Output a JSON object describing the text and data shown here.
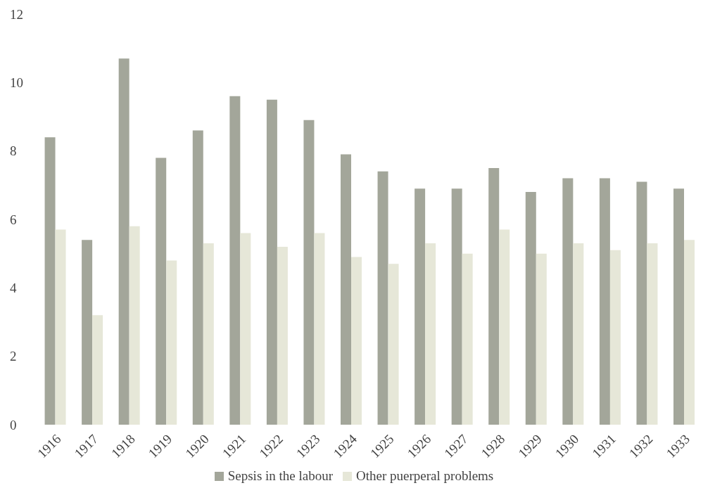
{
  "chart_data": {
    "type": "bar",
    "categories": [
      "1916",
      "1917",
      "1918",
      "1919",
      "1920",
      "1921",
      "1922",
      "1923",
      "1924",
      "1925",
      "1926",
      "1927",
      "1928",
      "1929",
      "1930",
      "1931",
      "1932",
      "1933"
    ],
    "series": [
      {
        "name": "Sepsis in the labour",
        "color": "#a3a69a",
        "values": [
          8.4,
          5.4,
          10.7,
          7.8,
          8.6,
          9.6,
          9.5,
          8.9,
          7.9,
          7.4,
          6.9,
          6.9,
          7.5,
          6.8,
          7.2,
          7.2,
          7.1,
          6.9
        ]
      },
      {
        "name": "Other puerperal problems",
        "color": "#e6e7d8",
        "values": [
          5.7,
          3.2,
          5.8,
          4.8,
          5.3,
          5.6,
          5.2,
          5.6,
          4.9,
          4.7,
          5.3,
          5.0,
          5.7,
          5.0,
          5.3,
          5.1,
          5.3,
          5.4
        ]
      }
    ],
    "ylim": [
      0,
      12
    ],
    "yticks": [
      0,
      2,
      4,
      6,
      8,
      10,
      12
    ],
    "grid": false,
    "legend": "bottom"
  }
}
